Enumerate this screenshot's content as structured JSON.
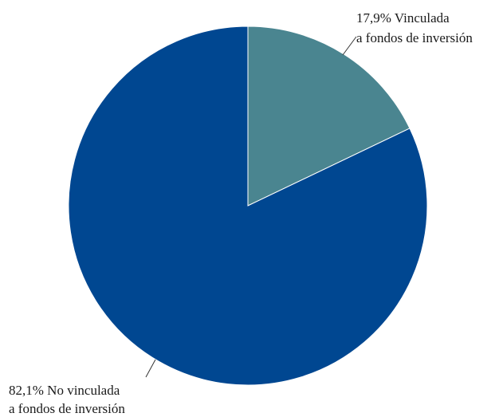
{
  "chart_data": {
    "type": "pie",
    "start_angle_deg": 0,
    "direction": "clockwise",
    "slices": [
      {
        "label_line1": "17,9% Vinculada",
        "label_line2": "a fondos de inversión",
        "value": 17.9,
        "color": "#4A8590"
      },
      {
        "label_line1": "82,1% No vinculada",
        "label_line2": "a fondos de inversión",
        "value": 82.1,
        "color": "#004791"
      }
    ],
    "slice_edge_color": "#ffffff",
    "leader_line_color": "#333333"
  }
}
